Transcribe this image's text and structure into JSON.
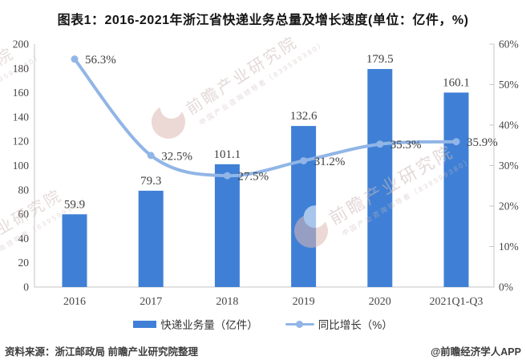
{
  "title": "图表1：2016-2021年浙江省快递业务总量及增长速度(单位：亿件，%)",
  "chart_data": {
    "type": "combo",
    "title": "图表1：2016-2021年浙江省快递业务总量及增长速度(单位：亿件，%)",
    "categories": [
      "2016",
      "2017",
      "2018",
      "2019",
      "2020",
      "2021Q1-Q3"
    ],
    "series": [
      {
        "name": "快递业务量（亿件）",
        "type": "bar",
        "values": [
          59.9,
          79.3,
          101.1,
          132.6,
          179.5,
          160.1
        ],
        "labels": [
          "59.9",
          "79.3",
          "101.1",
          "132.6",
          "179.5",
          "160.1"
        ],
        "color": "#3F80D6",
        "axis": "left"
      },
      {
        "name": "同比增长（%）",
        "type": "line",
        "values": [
          56.3,
          32.5,
          27.5,
          31.2,
          35.3,
          35.9
        ],
        "labels": [
          "56.3%",
          "32.5%",
          "27.5%",
          "31.2%",
          "35.3%",
          "35.9%"
        ],
        "color": "#91B5E6",
        "axis": "right"
      }
    ],
    "left_axis": {
      "min": 0,
      "max": 200,
      "step": 20,
      "tick_labels": [
        "0",
        "20",
        "40",
        "60",
        "80",
        "100",
        "120",
        "140",
        "160",
        "180",
        "200"
      ]
    },
    "right_axis": {
      "min": 0,
      "max": 60,
      "step": 10,
      "tick_labels": [
        "0%",
        "10%",
        "20%",
        "30%",
        "40%",
        "50%",
        "60%"
      ]
    },
    "grid": false,
    "legend_position": "bottom",
    "label_color": "#3f3f3f",
    "axis_color": "#c6c6c6",
    "tick_label_color": "#454545"
  },
  "footer": {
    "source": "资料来源：浙江邮政局 前瞻产业研究院整理",
    "credit": "@前瞻经济学人APP"
  },
  "watermark": {
    "brand_text": "前瞻产业研究院",
    "sub_text": "中国产业咨询领导者（839599380）",
    "text_color": "#cdb9b8",
    "logo_color": "#ddb9b4"
  }
}
